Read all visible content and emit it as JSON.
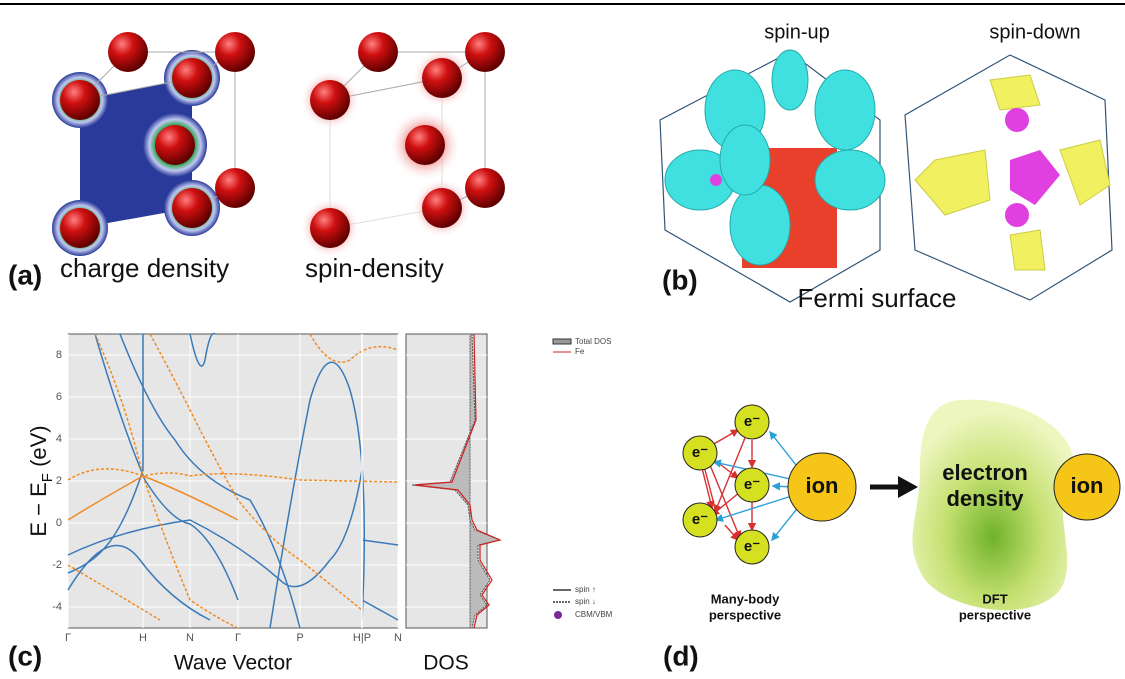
{
  "panel_a": {
    "label": "(a)",
    "left_caption": "charge density",
    "right_caption": "spin-density"
  },
  "panel_b": {
    "label": "(b)",
    "left_title": "spin-up",
    "right_title": "spin-down",
    "caption": "Fermi surface"
  },
  "panel_c": {
    "label": "(c)",
    "y_label": [
      "E − E",
      "F",
      " (eV)"
    ],
    "ylim": [
      -5,
      9
    ],
    "yticks": [
      -4,
      -2,
      0,
      2,
      4,
      6,
      8
    ],
    "kpoints": [
      "Γ",
      "H",
      "N",
      "Γ",
      "P",
      "H|P",
      "N"
    ],
    "x_label": "Wave Vector",
    "dos_label": "DOS",
    "legend": [
      "Total DOS",
      "Fe",
      "spin ↑",
      "spin ↓",
      "CBM/VBM"
    ]
  },
  "panel_d": {
    "label": "(d)",
    "electron": "e⁻",
    "ion": "ion",
    "density": [
      "electron",
      "density"
    ],
    "ion2": "ion",
    "left_caption": [
      "Many-body",
      "perspective"
    ],
    "right_caption": [
      "DFT",
      "perspective"
    ]
  }
}
